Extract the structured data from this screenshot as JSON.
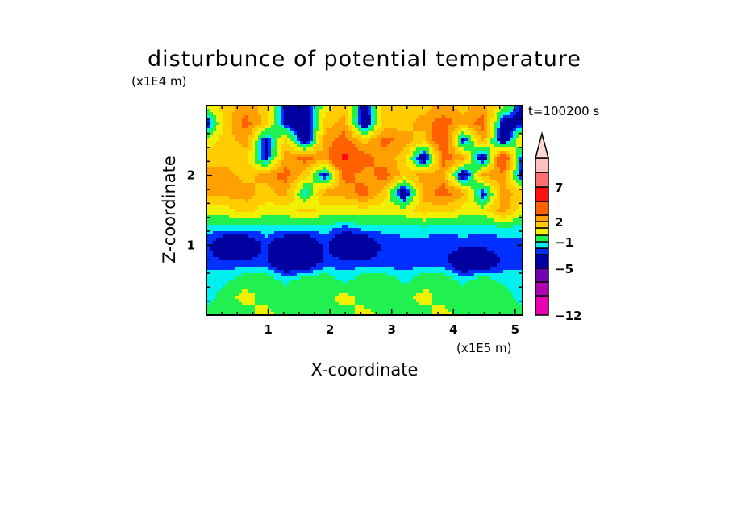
{
  "chart_data": {
    "type": "heatmap",
    "title": "disturbunce of potential temperature",
    "xlabel": "X-coordinate",
    "ylabel": "Z-coordinate",
    "x_unit": "(x1E5 m)",
    "y_unit": "(x1E4 m)",
    "annotation": "t=100200 s",
    "xlim": [
      0,
      5.12
    ],
    "ylim": [
      0,
      3
    ],
    "x_ticks": [
      "1",
      "2",
      "3",
      "4",
      "5"
    ],
    "x_tick_values": [
      1,
      2,
      3,
      4,
      5
    ],
    "y_ticks": [
      "1",
      "2"
    ],
    "y_tick_values": [
      1,
      2
    ],
    "colorbar": {
      "levels": [
        -12,
        -9,
        -7,
        -5,
        -2,
        -1.5,
        -1,
        0,
        1,
        2,
        3,
        5,
        7,
        9,
        12
      ],
      "colors": [
        "#e800b0",
        "#b000b0",
        "#7000b0",
        "#0000a0",
        "#0030ff",
        "#00f0f0",
        "#20f050",
        "#f0f000",
        "#ffcc00",
        "#ffa000",
        "#ff6000",
        "#ff1010",
        "#ff7070",
        "#ffc0c0"
      ],
      "extend_color": "#ffd8d0",
      "tick_labels": [
        "7",
        "2",
        "−1",
        "−5",
        "−12"
      ],
      "tick_values": [
        7,
        2,
        -1,
        -5,
        -12
      ]
    },
    "grid_x": [
      0,
      0.32,
      0.64,
      0.96,
      1.28,
      1.6,
      1.92,
      2.24,
      2.56,
      2.88,
      3.2,
      3.52,
      3.84,
      4.16,
      4.48,
      4.8,
      5.12
    ],
    "grid_z": [
      3.0,
      2.75,
      2.5,
      2.25,
      2.0,
      1.75,
      1.5,
      1.25,
      1.0,
      0.75,
      0.5,
      0.25,
      0.0
    ],
    "values_approx": [
      [
        0.5,
        1.5,
        2.5,
        1.5,
        -2.5,
        -2.5,
        0.5,
        1.5,
        -2.5,
        1.5,
        1.5,
        1.5,
        2.5,
        1.5,
        2.5,
        0.5,
        -2.5
      ],
      [
        -2.5,
        1.5,
        3.5,
        1.5,
        -2.5,
        -3.5,
        1.5,
        2.5,
        -3.5,
        1.5,
        1.5,
        2.5,
        3.5,
        2.5,
        3.5,
        -2.5,
        -2.5
      ],
      [
        0.5,
        1.5,
        2.5,
        -2.5,
        1.5,
        -3.5,
        2.5,
        3.5,
        1.5,
        3.5,
        2.5,
        1.5,
        4.5,
        -2.5,
        2.5,
        -3.5,
        1.5
      ],
      [
        1.5,
        1.5,
        1.5,
        -2.5,
        2.5,
        3.5,
        2.5,
        5.5,
        3.5,
        2.5,
        1.5,
        -3.5,
        3.5,
        2.5,
        -3.5,
        5.5,
        -2.5
      ],
      [
        2.5,
        2.5,
        1.5,
        2.5,
        3.5,
        1.5,
        -2.5,
        3.5,
        2.5,
        3.5,
        1.5,
        2.5,
        2.5,
        -3.5,
        2.5,
        2.5,
        -2.5
      ],
      [
        2.5,
        2.5,
        2.5,
        1.5,
        2.5,
        -1.5,
        2.5,
        2.5,
        3.5,
        1.5,
        -3.5,
        2.5,
        3.5,
        2.5,
        -2.5,
        2.5,
        1.5
      ],
      [
        0.5,
        0.5,
        1.5,
        0.5,
        0.5,
        1.5,
        0.5,
        0.5,
        0.5,
        0.5,
        0.5,
        1.5,
        1.5,
        0.5,
        0.5,
        2.5,
        0.5
      ],
      [
        -1.2,
        -1.2,
        -1.3,
        -1.2,
        -1.2,
        -1.3,
        -1.2,
        -1.8,
        -1.2,
        -1.3,
        -1.2,
        -1.2,
        -1.3,
        -1.2,
        -1.3,
        -1.2,
        -1.2
      ],
      [
        -1.8,
        -3,
        -3,
        -1.8,
        -3,
        -3,
        -1.8,
        -3,
        -3,
        -1.8,
        -1.8,
        -1.8,
        -1.8,
        -1.8,
        -1.8,
        -1.8,
        -1.8
      ],
      [
        -1.8,
        -1.8,
        -1.8,
        -1.8,
        -3,
        -3,
        -1.8,
        -1.8,
        -1.8,
        -1.8,
        -1.8,
        -1.8,
        -1.8,
        -3,
        -3,
        -1.8,
        -1.8
      ],
      [
        -1.2,
        -1.2,
        -0.5,
        -0.5,
        -1.2,
        -0.5,
        -0.5,
        -1.2,
        -0.5,
        -0.5,
        -1.2,
        -0.5,
        -0.5,
        -1.2,
        -0.5,
        -1.2,
        -1.2
      ],
      [
        -1.5,
        -0.5,
        0.5,
        -0.5,
        -0.5,
        -0.5,
        -0.5,
        0.5,
        -0.5,
        -0.5,
        -0.5,
        0.5,
        -0.5,
        -0.5,
        -0.5,
        -0.5,
        -1.5
      ],
      [
        -0.5,
        -0.5,
        -0.5,
        0.5,
        -0.5,
        -0.5,
        -0.5,
        -0.5,
        0.5,
        -0.5,
        -0.5,
        -0.5,
        0.5,
        -0.5,
        -0.5,
        -0.5,
        -0.5
      ]
    ]
  }
}
